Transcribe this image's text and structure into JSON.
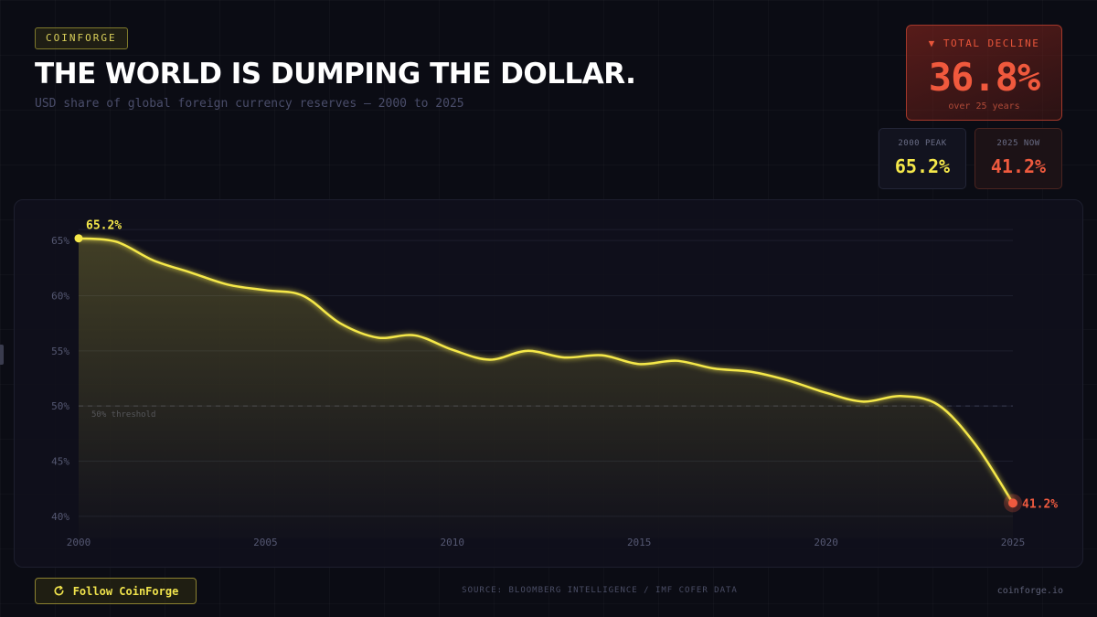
{
  "brand": {
    "badge": "COINFORGE"
  },
  "headline": "THE WORLD IS DUMPING THE DOLLAR.",
  "subtitle": "USD share of global foreign currency reserves — 2000 to 2025",
  "decline_card": {
    "label": "▼ TOTAL DECLINE",
    "value": "36.8%",
    "note": "over 25 years"
  },
  "stats": {
    "peak": {
      "label": "2000 PEAK",
      "value": "65.2%"
    },
    "now": {
      "label": "2025 NOW",
      "value": "41.2%"
    }
  },
  "footer": {
    "follow_label": "Follow CoinForge",
    "source": "SOURCE: BLOOMBERG INTELLIGENCE / IMF COFER DATA",
    "site": "coinforge.io"
  },
  "colors": {
    "line": "#f5e84a",
    "end_point": "#ee5a3f",
    "accent_red": "#f0593d",
    "background": "#0b0c14"
  },
  "icons": {
    "follow": "refresh-icon"
  },
  "chart_data": {
    "type": "line",
    "x": [
      2000,
      2001,
      2002,
      2003,
      2004,
      2005,
      2006,
      2007,
      2008,
      2009,
      2010,
      2011,
      2012,
      2013,
      2014,
      2015,
      2016,
      2017,
      2018,
      2019,
      2020,
      2021,
      2022,
      2023,
      2024,
      2025
    ],
    "series": [
      {
        "values": [
          65.2,
          64.9,
          63.2,
          62.1,
          61.0,
          60.5,
          60.0,
          57.5,
          56.2,
          56.4,
          55.1,
          54.2,
          55.0,
          54.4,
          54.6,
          53.8,
          54.1,
          53.4,
          53.1,
          52.3,
          51.2,
          50.4,
          50.9,
          50.1,
          46.5,
          41.2
        ]
      }
    ],
    "ylim": [
      38,
      67
    ],
    "yticks": [
      40,
      45,
      50,
      55,
      60,
      65
    ],
    "ytick_labels": [
      "40%",
      "45%",
      "50%",
      "55%",
      "60%",
      "65%"
    ],
    "xticks": [
      2000,
      2005,
      2010,
      2015,
      2020,
      2025
    ],
    "xtick_labels": [
      "2000",
      "2005",
      "2010",
      "2015",
      "2020",
      "2025"
    ],
    "threshold": {
      "value": 50,
      "label": "50% threshold"
    },
    "annotations": [
      {
        "x": 2000,
        "y": 65.2,
        "label": "65.2%"
      },
      {
        "x": 2025,
        "y": 41.2,
        "label": "41.2%"
      }
    ],
    "grid": true,
    "legend": "none"
  }
}
